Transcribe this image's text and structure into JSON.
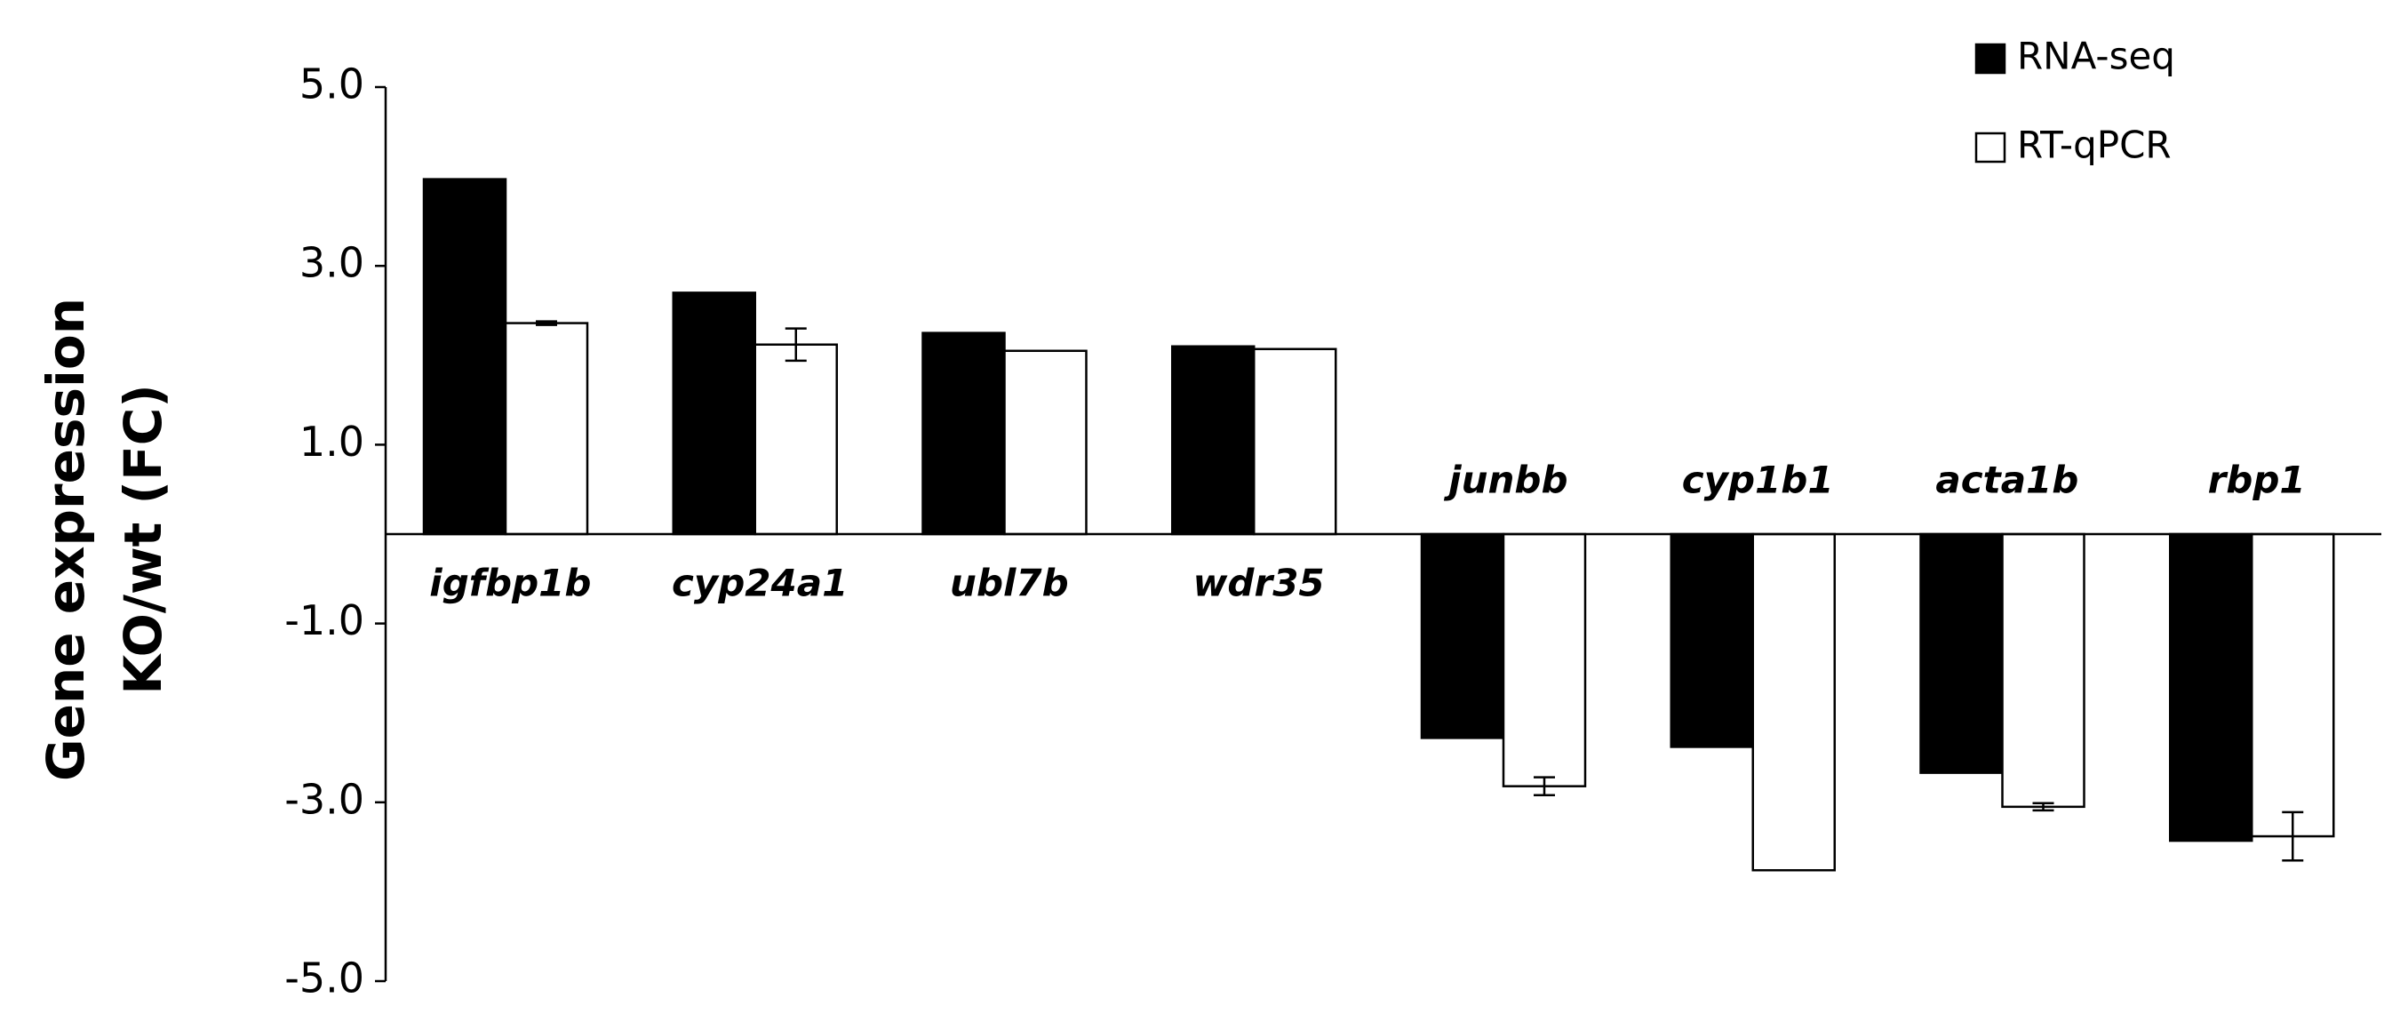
{
  "chart_data": {
    "type": "bar",
    "y_label": [
      "Gene expression",
      "KO/wt (FC)"
    ],
    "categories": [
      "igfbp1b",
      "cyp24a1",
      "ubl7b",
      "wdr35",
      "junbb",
      "cyp1b1",
      "acta1b",
      "rbp1"
    ],
    "series": [
      {
        "name": "RNA-seq",
        "color": "#000000",
        "values": [
          3.97,
          2.7,
          2.25,
          2.1,
          -2.28,
          -2.38,
          -2.67,
          -3.43
        ]
      },
      {
        "name": "RT-qPCR",
        "color": "#ffffff",
        "values": [
          2.36,
          2.12,
          2.05,
          2.07,
          -2.82,
          -3.76,
          -3.05,
          -3.38
        ],
        "errors": [
          0.02,
          0.18,
          null,
          null,
          0.1,
          null,
          0.04,
          0.27
        ]
      }
    ],
    "ylim": [
      -5,
      5
    ],
    "yticks": [
      {
        "value": -5,
        "label": "-5.0"
      },
      {
        "value": -3,
        "label": "-3.0"
      },
      {
        "value": -1,
        "label": "-1.0"
      },
      {
        "value": 1,
        "label": "1.0"
      },
      {
        "value": 3,
        "label": "3.0"
      },
      {
        "value": 5,
        "label": "5.0"
      }
    ],
    "legend": "top-right"
  }
}
